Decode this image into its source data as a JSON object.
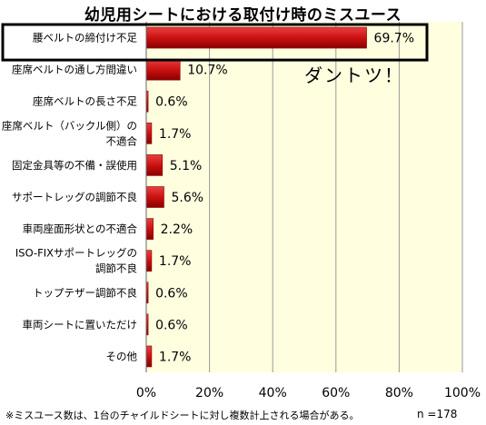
{
  "chart_data": {
    "type": "bar",
    "orientation": "horizontal",
    "title": "幼児用シートにおける取付け時のミスユース",
    "categories": [
      "腰ベルトの締付け不足",
      "座席ベルトの通し方間違い",
      "座席ベルトの長さ不足",
      "座席ベルト（バックル側）の\n不適合",
      "固定金具等の不備・誤使用",
      "サポートレッグの調節不良",
      "車両座面形状との不適合",
      "ISO-FIXサポートレッグの\n調節不良",
      "トップテザー調節不良",
      "車両シートに置いただけ",
      "その他"
    ],
    "values": [
      69.7,
      10.7,
      0.6,
      1.7,
      5.1,
      5.6,
      2.2,
      1.7,
      0.6,
      0.6,
      1.7
    ],
    "value_labels": [
      "69.7%",
      "10.7%",
      "0.6%",
      "1.7%",
      "5.1%",
      "5.6%",
      "2.2%",
      "1.7%",
      "0.6%",
      "0.6%",
      "1.7%"
    ],
    "xlim": [
      0,
      100
    ],
    "x_ticks": [
      0,
      20,
      40,
      60,
      80,
      100
    ],
    "x_tick_labels": [
      "0%",
      "20%",
      "40%",
      "60%",
      "80%",
      "100%"
    ],
    "grid": true,
    "highlighted_category_index": 0,
    "annotation": "ダントツ！",
    "footnote": "※ミスユース数は、1台のチャイルドシートに対し複数計上される場合がある。",
    "n_label": "n =178"
  },
  "colors": {
    "plot_background": "#ffffe0",
    "bar_fill": "#cc1111",
    "bar_dark": "#8a0000",
    "gridline": "#999999",
    "highlight_border": "#000000"
  }
}
